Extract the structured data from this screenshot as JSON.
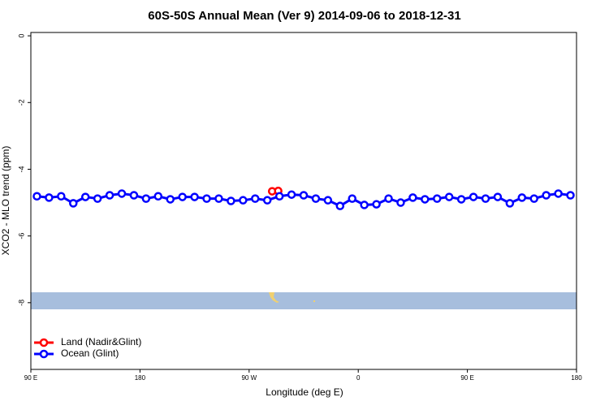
{
  "chart_data": {
    "type": "line",
    "title": "60S-50S Annual Mean (Ver 9)   2014-09-06 to 2018-12-31",
    "x_label": "Longitude (deg E)",
    "y_label": "XCO2 - MLO trend (ppm)",
    "xlim": [
      90,
      540
    ],
    "xticks": [
      {
        "value": 90,
        "label": "90 E"
      },
      180,
      {
        "value": 270,
        "label": "90 W"
      },
      {
        "value": 360,
        "label": "0"
      },
      {
        "value": 450,
        "label": "90 E"
      },
      {
        "value": 540,
        "label": "180"
      }
    ],
    "ylim": [
      -10,
      0.1
    ],
    "yticks": [
      0,
      -2,
      -4,
      -6,
      -8
    ],
    "legend": "bottom-left",
    "series": [
      {
        "name": "Land (Nadir&Glint)",
        "color": "#ff0000",
        "x": [
          289,
          294
        ],
        "values": [
          -4.66,
          -4.65
        ]
      },
      {
        "name": "Ocean (Glint)",
        "color": "#0000ff",
        "x": [
          95,
          105,
          115,
          125,
          135,
          145,
          155,
          165,
          175,
          185,
          195,
          205,
          215,
          225,
          235,
          245,
          255,
          265,
          275,
          285,
          295,
          305,
          315,
          325,
          335,
          345,
          355,
          365,
          375,
          385,
          395,
          405,
          415,
          425,
          435,
          445,
          455,
          465,
          475,
          485,
          495,
          505,
          515,
          525,
          535
        ],
        "values": [
          -4.81,
          -4.85,
          -4.81,
          -5.02,
          -4.83,
          -4.88,
          -4.78,
          -4.73,
          -4.78,
          -4.88,
          -4.81,
          -4.9,
          -4.83,
          -4.83,
          -4.88,
          -4.88,
          -4.95,
          -4.93,
          -4.88,
          -4.93,
          -4.81,
          -4.76,
          -4.78,
          -4.88,
          -4.93,
          -5.1,
          -4.88,
          -5.07,
          -5.05,
          -4.88,
          -5.0,
          -4.85,
          -4.9,
          -4.88,
          -4.83,
          -4.9,
          -4.83,
          -4.88,
          -4.83,
          -5.02,
          -4.85,
          -4.88,
          -4.78,
          -4.73,
          -4.78
        ]
      }
    ]
  }
}
